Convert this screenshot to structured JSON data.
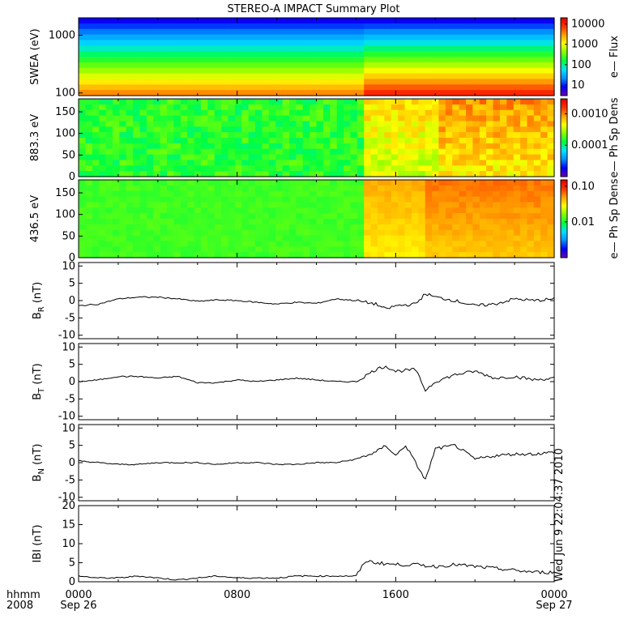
{
  "title": "STEREO-A IMPACT Summary Plot",
  "stamp": "Wed Jun  9 22:04:37 2010",
  "colors": {
    "line": "#000000",
    "frame": "#000000",
    "background": "#ffffff"
  },
  "colorbar_stops": [
    "#6a00b0",
    "#0000ff",
    "#0090ff",
    "#00e0ff",
    "#00ff40",
    "#80ff00",
    "#ffff00",
    "#ffa000",
    "#ff3000",
    "#e00000"
  ],
  "chart_data": [
    {
      "type": "heatmap",
      "ylabel": "SWEA (eV)",
      "yticks": [
        "1000",
        "100"
      ],
      "ylim": [
        90,
        2000
      ],
      "yscale": "log",
      "colorbar": {
        "label": "e— Flux",
        "ticks": [
          "10000",
          "1000",
          "100",
          "10"
        ],
        "range": [
          3,
          20000
        ],
        "scale": "log"
      },
      "description_hint": "energy spectrogram, high flux at low energy"
    },
    {
      "type": "heatmap",
      "ylabel": "883.3 eV",
      "yticks": [
        "150",
        "100",
        "50",
        "0"
      ],
      "ylim": [
        0,
        180
      ],
      "colorbar": {
        "label": "e— Ph Sp Dens",
        "ticks": [
          "0.0010",
          "0.0001"
        ],
        "range": [
          1e-05,
          0.003
        ],
        "scale": "log"
      }
    },
    {
      "type": "heatmap",
      "ylabel": "436.5 eV",
      "yticks": [
        "150",
        "100",
        "50",
        "0"
      ],
      "ylim": [
        0,
        180
      ],
      "colorbar": {
        "label": "e— Ph Sp Dens",
        "ticks": [
          "0.10",
          "0.01"
        ],
        "range": [
          0.001,
          0.15
        ],
        "scale": "log"
      }
    },
    {
      "type": "line",
      "ylabel": "B_R (nT)",
      "ylabel_main": "B",
      "ylabel_sub": "R",
      "ylabel_unit": "(nT)",
      "yticks": [
        "10",
        "5",
        "0",
        "-5",
        "-10"
      ],
      "ylim": [
        -11,
        11
      ],
      "x": [
        0,
        1,
        2,
        3,
        4,
        5,
        6,
        7,
        8,
        9,
        10,
        11,
        12,
        13,
        14,
        15,
        15.5,
        16,
        17,
        17.5,
        18,
        19,
        20,
        21,
        22,
        23,
        24
      ],
      "values": [
        -1.5,
        -1,
        0.5,
        1,
        1,
        0.5,
        -0.2,
        0.2,
        0,
        -0.5,
        -1,
        -0.5,
        -0.8,
        0.5,
        0,
        -1,
        -2.5,
        -1.5,
        -1,
        2,
        1,
        0,
        -1.5,
        -1,
        0.5,
        0,
        0.5
      ]
    },
    {
      "type": "line",
      "ylabel": "B_T (nT)",
      "ylabel_main": "B",
      "ylabel_sub": "T",
      "ylabel_unit": "(nT)",
      "yticks": [
        "10",
        "5",
        "0",
        "-5",
        "-10"
      ],
      "ylim": [
        -11,
        11
      ],
      "x": [
        0,
        1,
        2,
        3,
        4,
        5,
        6,
        7,
        8,
        9,
        10,
        11,
        12,
        13,
        14,
        15,
        15.5,
        16,
        17,
        17.5,
        18,
        19,
        20,
        21,
        22,
        23,
        24
      ],
      "values": [
        0,
        0.5,
        1.5,
        1.5,
        1,
        1.5,
        -0.3,
        -0.3,
        0.5,
        0,
        0.5,
        1,
        0.5,
        0,
        0,
        3.5,
        4.5,
        3,
        3.5,
        -2.5,
        0,
        2,
        3,
        1,
        1.5,
        0.5,
        1
      ]
    },
    {
      "type": "line",
      "ylabel": "B_N (nT)",
      "ylabel_main": "B",
      "ylabel_sub": "N",
      "ylabel_unit": "(nT)",
      "yticks": [
        "10",
        "5",
        "0",
        "-5",
        "-10"
      ],
      "ylim": [
        -11,
        11
      ],
      "x": [
        0,
        1,
        2,
        3,
        4,
        5,
        6,
        7,
        8,
        9,
        10,
        11,
        12,
        13,
        14,
        15,
        15.5,
        16,
        16.5,
        17,
        17.5,
        18,
        19,
        20,
        21,
        22,
        23,
        24
      ],
      "values": [
        0.5,
        0,
        -0.5,
        -0.5,
        0,
        0,
        0,
        -0.5,
        0,
        0,
        -0.5,
        -0.5,
        0,
        0,
        1,
        3,
        5,
        2,
        5,
        0,
        -5,
        4,
        5,
        1,
        2,
        2.5,
        2.5,
        3
      ]
    },
    {
      "type": "line",
      "ylabel": "|B| (nT)",
      "ylabel_main": "IBI",
      "ylabel_sub": "",
      "ylabel_unit": "(nT)",
      "yticks": [
        "20",
        "15",
        "10",
        "5",
        "0"
      ],
      "ylim": [
        0,
        20
      ],
      "x": [
        0,
        1,
        2,
        3,
        4,
        5,
        6,
        7,
        8,
        9,
        10,
        11,
        12,
        13,
        14,
        14.5,
        15,
        16,
        17,
        18,
        19,
        20,
        21,
        22,
        23,
        24
      ],
      "values": [
        1.5,
        1,
        1,
        1.5,
        1,
        0.5,
        1,
        1.5,
        1,
        1,
        1,
        1.5,
        1.5,
        1.5,
        1.5,
        5.5,
        5,
        4.5,
        4.5,
        4,
        4.5,
        4,
        3.5,
        3,
        2.5,
        2.5
      ]
    }
  ],
  "xaxis": {
    "ticks": [
      {
        "hhmm": "0000",
        "date": "Sep 26"
      },
      {
        "hhmm": "0800",
        "date": ""
      },
      {
        "hhmm": "1600",
        "date": ""
      },
      {
        "hhmm": "0000",
        "date": "Sep 27"
      }
    ],
    "label_line1": "hhmm",
    "label_line2": "2008",
    "range_hours": [
      0,
      24
    ]
  }
}
